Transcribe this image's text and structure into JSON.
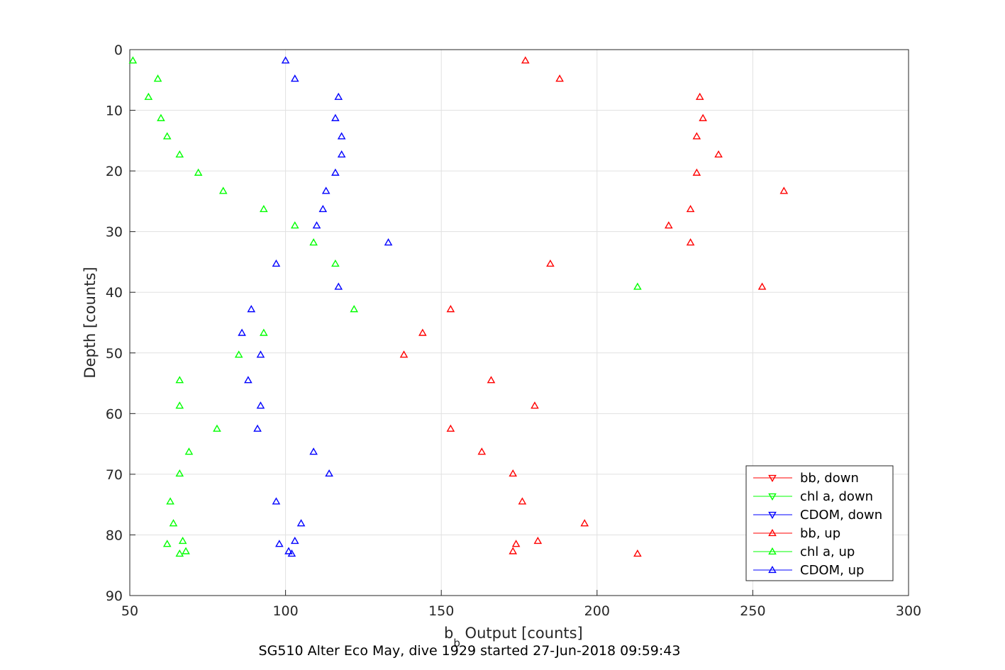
{
  "chart_data": {
    "type": "scatter",
    "title": "",
    "xlabel_main": "b",
    "xlabel_sub": "b",
    "xlabel_rest": " Output [counts]",
    "ylabel": "Depth [counts]",
    "caption": "SG510 Alter Eco May, dive 1929 started 27-Jun-2018 09:59:43",
    "xlim": [
      50,
      300
    ],
    "ylim": [
      0,
      90
    ],
    "y_reversed": true,
    "grid": true,
    "legend_position": "bottom-right",
    "xticks": [
      "50",
      "100",
      "150",
      "200",
      "250",
      "300"
    ],
    "yticks": [
      "0",
      "10",
      "20",
      "30",
      "40",
      "50",
      "60",
      "70",
      "80",
      "90"
    ],
    "series": [
      {
        "name": "bb, down",
        "color": "#ff0000",
        "marker": "triangle-down",
        "points": []
      },
      {
        "name": "chl a, down",
        "color": "#00ff00",
        "marker": "triangle-down",
        "points": []
      },
      {
        "name": "CDOM, down",
        "color": "#0000ff",
        "marker": "triangle-down",
        "points": []
      },
      {
        "name": "bb, up",
        "color": "#ff0000",
        "marker": "triangle-up",
        "points": [
          [
            177,
            1.8
          ],
          [
            188,
            4.8
          ],
          [
            233,
            7.8
          ],
          [
            234,
            11.3
          ],
          [
            232,
            14.3
          ],
          [
            239,
            17.3
          ],
          [
            232,
            20.3
          ],
          [
            260,
            23.3
          ],
          [
            230,
            26.3
          ],
          [
            223,
            29.0
          ],
          [
            230,
            31.8
          ],
          [
            185,
            35.3
          ],
          [
            253,
            39.1
          ],
          [
            153,
            42.8
          ],
          [
            144,
            46.7
          ],
          [
            138,
            50.3
          ],
          [
            166,
            54.5
          ],
          [
            180,
            58.7
          ],
          [
            153,
            62.5
          ],
          [
            163,
            66.3
          ],
          [
            173,
            69.9
          ],
          [
            176,
            74.5
          ],
          [
            196,
            78.1
          ],
          [
            181,
            81.0
          ],
          [
            174,
            81.5
          ],
          [
            173,
            82.7
          ],
          [
            213,
            83.1
          ]
        ]
      },
      {
        "name": "chl a, up",
        "color": "#00ff00",
        "marker": "triangle-up",
        "points": [
          [
            51,
            1.8
          ],
          [
            59,
            4.8
          ],
          [
            56,
            7.8
          ],
          [
            60,
            11.3
          ],
          [
            62,
            14.3
          ],
          [
            66,
            17.3
          ],
          [
            72,
            20.3
          ],
          [
            80,
            23.3
          ],
          [
            93,
            26.3
          ],
          [
            103,
            29.0
          ],
          [
            109,
            31.8
          ],
          [
            116,
            35.3
          ],
          [
            213,
            39.1
          ],
          [
            122,
            42.8
          ],
          [
            93,
            46.7
          ],
          [
            85,
            50.3
          ],
          [
            66,
            54.5
          ],
          [
            66,
            58.7
          ],
          [
            78,
            62.5
          ],
          [
            69,
            66.3
          ],
          [
            66,
            69.9
          ],
          [
            63,
            74.5
          ],
          [
            64,
            78.1
          ],
          [
            67,
            81.0
          ],
          [
            62,
            81.5
          ],
          [
            68,
            82.7
          ],
          [
            66,
            83.1
          ]
        ]
      },
      {
        "name": "CDOM, up",
        "color": "#0000ff",
        "marker": "triangle-up",
        "points": [
          [
            100,
            1.8
          ],
          [
            103,
            4.8
          ],
          [
            117,
            7.8
          ],
          [
            116,
            11.3
          ],
          [
            118,
            14.3
          ],
          [
            118,
            17.3
          ],
          [
            116,
            20.3
          ],
          [
            113,
            23.3
          ],
          [
            112,
            26.3
          ],
          [
            110,
            29.0
          ],
          [
            133,
            31.8
          ],
          [
            97,
            35.3
          ],
          [
            117,
            39.1
          ],
          [
            89,
            42.8
          ],
          [
            86,
            46.7
          ],
          [
            92,
            50.3
          ],
          [
            88,
            54.5
          ],
          [
            92,
            58.7
          ],
          [
            91,
            62.5
          ],
          [
            109,
            66.3
          ],
          [
            114,
            69.9
          ],
          [
            97,
            74.5
          ],
          [
            105,
            78.1
          ],
          [
            103,
            81.0
          ],
          [
            98,
            81.5
          ],
          [
            101,
            82.7
          ],
          [
            102,
            83.1
          ]
        ]
      }
    ]
  }
}
